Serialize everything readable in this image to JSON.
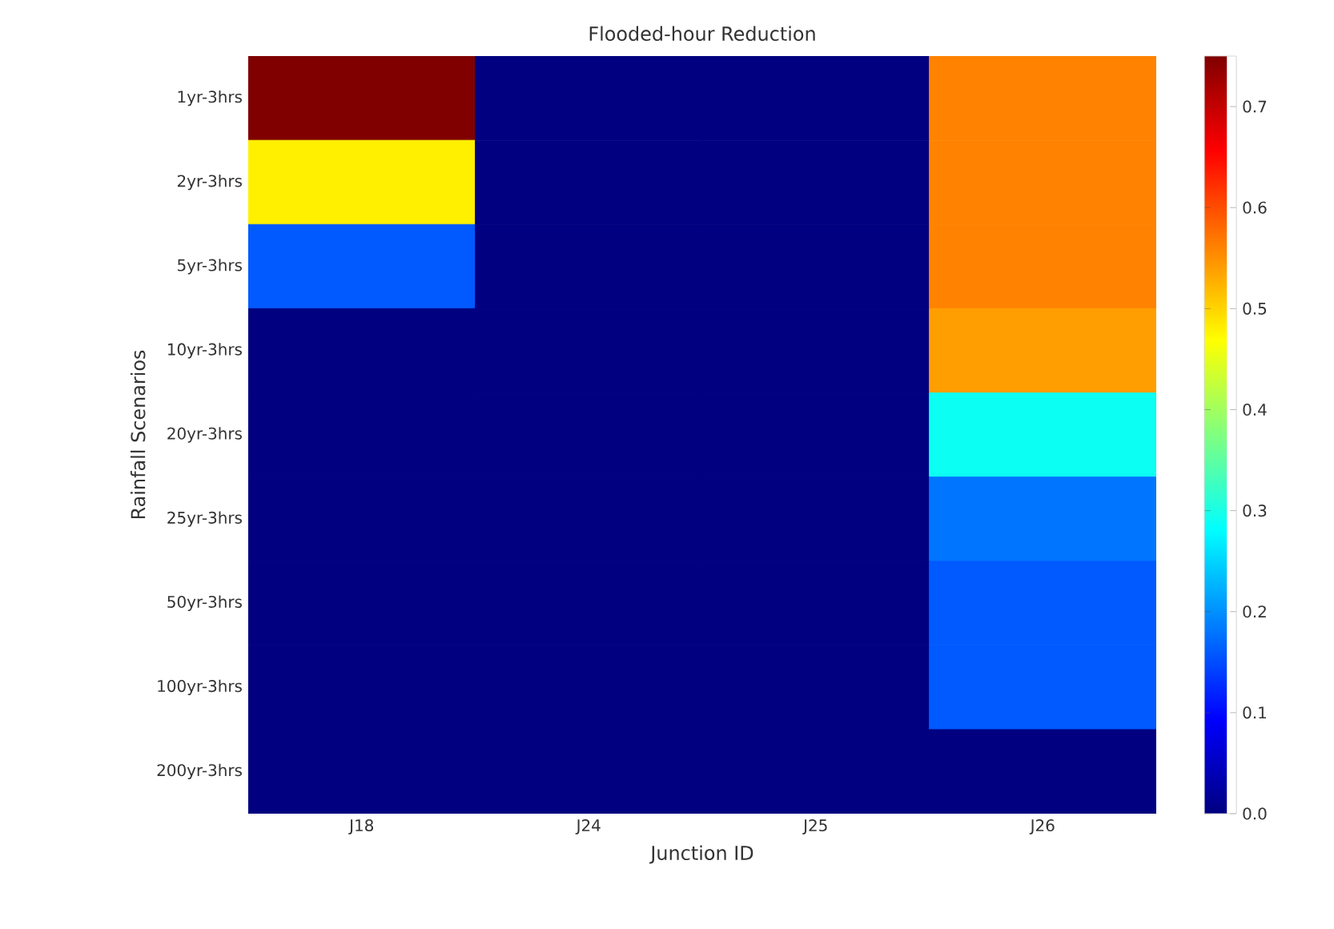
{
  "chart_data": {
    "type": "heatmap",
    "title": "Flooded-hour Reduction",
    "xlabel": "Junction ID",
    "ylabel": "Rainfall Scenarios",
    "categories": [
      "J18",
      "J24",
      "J25",
      "J26"
    ],
    "y_categories": [
      "1yr-3hrs",
      "2yr-3hrs",
      "5yr-3hrs",
      "10yr-3hrs",
      "20yr-3hrs",
      "25yr-3hrs",
      "50yr-3hrs",
      "100yr-3hrs",
      "200yr-3hrs"
    ],
    "cells": [
      [
        0.75,
        0,
        0,
        0.56
      ],
      [
        0.48,
        0,
        0,
        0.56
      ],
      [
        0.16,
        0,
        0,
        0.56
      ],
      [
        0,
        0,
        0,
        0.54
      ],
      [
        0,
        0,
        0,
        0.29
      ],
      [
        0,
        0,
        0,
        0.18
      ],
      [
        0,
        0,
        0,
        0.16
      ],
      [
        0,
        0,
        0,
        0.16
      ],
      [
        0,
        0,
        0,
        0
      ]
    ],
    "clim": [
      0,
      0.75
    ],
    "cticks": [
      {
        "value": 0,
        "label": "0.0"
      },
      {
        "value": 0.1,
        "label": "0.1"
      },
      {
        "value": 0.2,
        "label": "0.2"
      },
      {
        "value": 0.3,
        "label": "0.3"
      },
      {
        "value": 0.4,
        "label": "0.4"
      },
      {
        "value": 0.5,
        "label": "0.5"
      },
      {
        "value": 0.6,
        "label": "0.6"
      },
      {
        "value": 0.7,
        "label": "0.7"
      }
    ]
  }
}
